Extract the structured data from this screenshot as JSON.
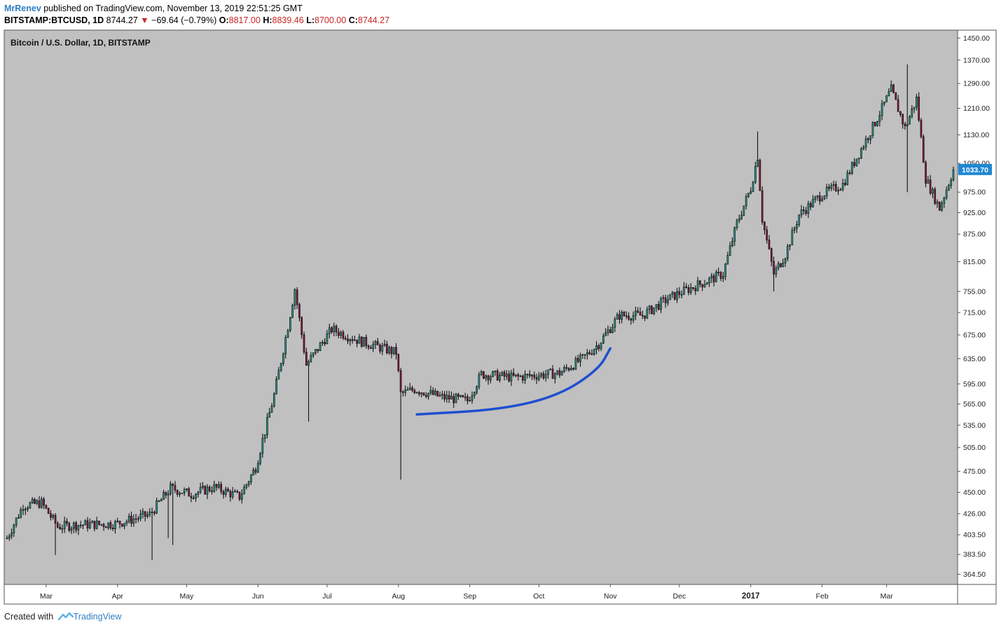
{
  "header": {
    "author": "MrRenev",
    "published_text": "published on TradingView.com, November 13, 2019 22:51:25 GMT",
    "symbol_line": "BITSTAMP:BTCUSD, 1D",
    "last": "8744.27",
    "change": "−69.64 (−0.79%)",
    "ohlc": [
      {
        "key": "O:",
        "value": "8817.00"
      },
      {
        "key": "H:",
        "value": "8839.46"
      },
      {
        "key": "L:",
        "value": "8700.00"
      },
      {
        "key": "C:",
        "value": "8744.27"
      }
    ],
    "down_arrow_color": "#c62828"
  },
  "footer": {
    "created_with": "Created with",
    "brand": "TradingView",
    "logo_icon": "tradingview-logo-icon"
  },
  "chart_data": {
    "type": "candlestick",
    "title": "Bitcoin / U.S. Dollar, 1D, BITSTAMP",
    "y_scale": "log",
    "ylim": [
      355,
      1480
    ],
    "y_ticks": [
      "1450.00",
      "1370.00",
      "1290.00",
      "1210.00",
      "1130.00",
      "1050.00",
      "975.00",
      "925.00",
      "875.00",
      "815.00",
      "755.00",
      "715.00",
      "675.00",
      "635.00",
      "595.00",
      "565.00",
      "535.00",
      "505.00",
      "475.00",
      "450.00",
      "426.00",
      "403.50",
      "383.50",
      "364.50"
    ],
    "x_ticks": [
      {
        "label": "Mar",
        "date": "2016-03-01",
        "bold": false
      },
      {
        "label": "Apr",
        "date": "2016-04-01",
        "bold": false
      },
      {
        "label": "May",
        "date": "2016-05-01",
        "bold": false
      },
      {
        "label": "Jun",
        "date": "2016-06-01",
        "bold": false
      },
      {
        "label": "Jul",
        "date": "2016-07-01",
        "bold": false
      },
      {
        "label": "Aug",
        "date": "2016-08-01",
        "bold": false
      },
      {
        "label": "Sep",
        "date": "2016-09-01",
        "bold": false
      },
      {
        "label": "Oct",
        "date": "2016-10-01",
        "bold": false
      },
      {
        "label": "Nov",
        "date": "2016-11-01",
        "bold": false
      },
      {
        "label": "Dec",
        "date": "2016-12-01",
        "bold": false
      },
      {
        "label": "2017",
        "date": "2017-01-01",
        "bold": true
      },
      {
        "label": "Feb",
        "date": "2017-02-01",
        "bold": false
      },
      {
        "label": "Mar",
        "date": "2017-03-01",
        "bold": false
      }
    ],
    "x_range": [
      "2016-02-13",
      "2017-03-30"
    ],
    "last_price_label": "1033.70",
    "last_price": 1033.7,
    "grid": false,
    "colors": {
      "background": "#c0c0c0",
      "up_body": "#2a9d8f",
      "down_body": "#8b1c3f",
      "wick": "#000000",
      "last_price_tag": "#1e88d2",
      "trend_curve": "#1f4fcf"
    },
    "annotation": {
      "type": "curve",
      "points": [
        [
          "2016-08-09",
          550
        ],
        [
          "2016-09-15",
          557
        ],
        [
          "2016-10-10",
          578
        ],
        [
          "2016-10-27",
          618
        ],
        [
          "2016-11-01",
          652
        ]
      ]
    },
    "anchors": [
      [
        "2016-02-13",
        400
      ],
      [
        "2016-02-20",
        435
      ],
      [
        "2016-02-28",
        438
      ],
      [
        "2016-03-06",
        412
      ],
      [
        "2016-03-15",
        414
      ],
      [
        "2016-03-31",
        415
      ],
      [
        "2016-04-15",
        425
      ],
      [
        "2016-04-24",
        455
      ],
      [
        "2016-05-03",
        448
      ],
      [
        "2016-05-13",
        456
      ],
      [
        "2016-05-24",
        445
      ],
      [
        "2016-05-31",
        480
      ],
      [
        "2016-06-08",
        578
      ],
      [
        "2016-06-14",
        690
      ],
      [
        "2016-06-17",
        760
      ],
      [
        "2016-06-22",
        625
      ],
      [
        "2016-07-03",
        685
      ],
      [
        "2016-07-15",
        665
      ],
      [
        "2016-07-31",
        645
      ],
      [
        "2016-08-02",
        580
      ],
      [
        "2016-08-08",
        587
      ],
      [
        "2016-08-20",
        575
      ],
      [
        "2016-08-31",
        570
      ],
      [
        "2016-09-06",
        610
      ],
      [
        "2016-09-20",
        605
      ],
      [
        "2016-10-10",
        612
      ],
      [
        "2016-10-20",
        635
      ],
      [
        "2016-10-27",
        660
      ],
      [
        "2016-11-05",
        710
      ],
      [
        "2016-11-15",
        710
      ],
      [
        "2016-11-25",
        738
      ],
      [
        "2016-12-01",
        752
      ],
      [
        "2016-12-20",
        790
      ],
      [
        "2016-12-26",
        900
      ],
      [
        "2017-01-01",
        985
      ],
      [
        "2017-01-04",
        1070
      ],
      [
        "2017-01-06",
        910
      ],
      [
        "2017-01-11",
        790
      ],
      [
        "2017-01-16",
        830
      ],
      [
        "2017-01-22",
        920
      ],
      [
        "2017-02-01",
        970
      ],
      [
        "2017-02-10",
        995
      ],
      [
        "2017-02-25",
        1180
      ],
      [
        "2017-03-03",
        1270
      ],
      [
        "2017-03-09",
        1150
      ],
      [
        "2017-03-14",
        1240
      ],
      [
        "2017-03-18",
        1010
      ],
      [
        "2017-03-24",
        935
      ],
      [
        "2017-03-30",
        1033
      ]
    ],
    "spikes": [
      {
        "date": "2016-03-05",
        "low": 383
      },
      {
        "date": "2016-04-16",
        "low": 378
      },
      {
        "date": "2016-04-23",
        "low": 400
      },
      {
        "date": "2016-04-25",
        "low": 393
      },
      {
        "date": "2016-06-23",
        "low": 540
      },
      {
        "date": "2016-08-02",
        "low": 465
      },
      {
        "date": "2017-01-11",
        "low": 755
      },
      {
        "date": "2017-03-10",
        "low": 975
      },
      {
        "date": "2017-03-10",
        "high": 1355
      },
      {
        "date": "2017-01-04",
        "high": 1140
      }
    ]
  }
}
